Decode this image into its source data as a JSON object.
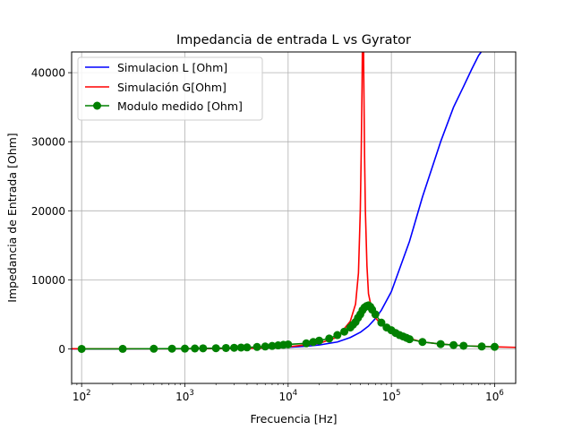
{
  "chart_data": {
    "type": "line",
    "title": "Impedancia de entrada L vs Gyrator",
    "xlabel": "Frecuencia [Hz]",
    "ylabel": "Impedancia de Entrada [Ohm]",
    "xscale": "log",
    "xlim": [
      80,
      1600000
    ],
    "ylim": [
      -5000,
      43000
    ],
    "x_ticks": [
      {
        "value": 100,
        "base": "10",
        "exp": "2"
      },
      {
        "value": 1000,
        "base": "10",
        "exp": "3"
      },
      {
        "value": 10000,
        "base": "10",
        "exp": "4"
      },
      {
        "value": 100000,
        "base": "10",
        "exp": "5"
      },
      {
        "value": 1000000,
        "base": "10",
        "exp": "6"
      }
    ],
    "y_ticks": [
      {
        "value": 0,
        "label": "0"
      },
      {
        "value": 10000,
        "label": "10000"
      },
      {
        "value": 20000,
        "label": "20000"
      },
      {
        "value": 30000,
        "label": "30000"
      },
      {
        "value": 40000,
        "label": "40000"
      }
    ],
    "grid": true,
    "legend_position": "top-left",
    "series": [
      {
        "name": "Simulacion L [Ohm]",
        "color": "#0000ff",
        "marker": "none",
        "x": [
          80,
          100,
          200,
          500,
          1000,
          2000,
          5000,
          10000,
          15000,
          20000,
          30000,
          40000,
          50000,
          60000,
          70000,
          80000,
          100000,
          150000,
          200000,
          300000,
          400000,
          500000,
          600000,
          700000,
          750000,
          800000
        ],
        "y": [
          2,
          2,
          4,
          10,
          20,
          40,
          101,
          230,
          390,
          560,
          1000,
          1650,
          2400,
          3300,
          4400,
          5600,
          8300,
          15600,
          22000,
          30000,
          35000,
          38000,
          40500,
          42500,
          43100,
          43800
        ]
      },
      {
        "name": "Simulación G[Ohm]",
        "color": "#ff0000",
        "marker": "none",
        "x": [
          80,
          1000,
          5000,
          10000,
          20000,
          30000,
          40000,
          45000,
          48000,
          50000,
          51000,
          52000,
          52500,
          53000,
          53500,
          54000,
          55000,
          56000,
          58000,
          60000,
          65000,
          70000,
          80000,
          100000,
          150000,
          200000,
          300000,
          500000,
          1000000,
          1600000
        ],
        "y": [
          20,
          25,
          100,
          300,
          800,
          1700,
          4000,
          6500,
          11000,
          20000,
          28000,
          38000,
          45000,
          52000,
          50000,
          40000,
          28000,
          20000,
          12000,
          8000,
          5500,
          4500,
          3500,
          2500,
          1500,
          1000,
          700,
          450,
          300,
          220
        ]
      },
      {
        "name": "Modulo medido [Ohm]",
        "color": "#008000",
        "marker": "circle",
        "x": [
          100,
          250,
          500,
          750,
          1000,
          1250,
          1500,
          2000,
          2500,
          3000,
          3500,
          4000,
          5000,
          6000,
          7000,
          8000,
          9000,
          10000,
          15000,
          17500,
          20000,
          25000,
          30000,
          35000,
          40000,
          42500,
          45000,
          47500,
          50000,
          52500,
          55000,
          57500,
          60000,
          62500,
          65000,
          70000,
          80000,
          90000,
          100000,
          110000,
          120000,
          130000,
          140000,
          150000,
          200000,
          300000,
          400000,
          500000,
          750000,
          1000000
        ],
        "y": [
          0,
          10,
          20,
          30,
          40,
          60,
          80,
          100,
          130,
          160,
          190,
          220,
          280,
          350,
          430,
          510,
          590,
          650,
          800,
          1000,
          1200,
          1500,
          2000,
          2500,
          3100,
          3500,
          3900,
          4500,
          5000,
          5600,
          6000,
          6200,
          6300,
          6100,
          5700,
          5000,
          3800,
          3100,
          2700,
          2300,
          2000,
          1800,
          1600,
          1400,
          1000,
          700,
          550,
          450,
          350,
          300
        ]
      }
    ]
  }
}
